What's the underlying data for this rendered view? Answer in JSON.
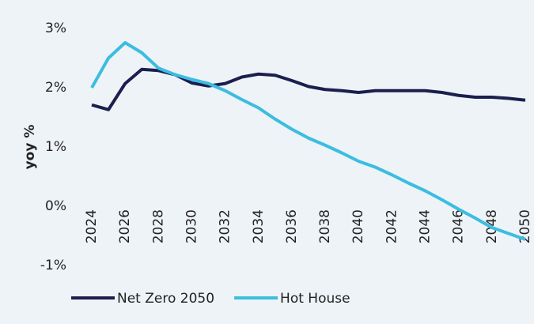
{
  "chart_data": {
    "type": "line",
    "y_label": "yoy %",
    "x": [
      2024,
      2025,
      2026,
      2027,
      2028,
      2029,
      2030,
      2031,
      2032,
      2033,
      2034,
      2035,
      2036,
      2037,
      2038,
      2039,
      2040,
      2041,
      2042,
      2043,
      2044,
      2045,
      2046,
      2047,
      2048,
      2049,
      2050
    ],
    "series": [
      {
        "name": "Net Zero 2050",
        "color": "#1b1f4e",
        "values": [
          1.71,
          1.63,
          2.07,
          2.31,
          2.29,
          2.22,
          2.08,
          2.03,
          2.07,
          2.18,
          2.23,
          2.21,
          2.12,
          2.02,
          1.97,
          1.95,
          1.92,
          1.95,
          1.95,
          1.95,
          1.95,
          1.92,
          1.87,
          1.84,
          1.84,
          1.82,
          1.79
        ]
      },
      {
        "name": "Hot House",
        "color": "#3cbde0",
        "values": [
          2.0,
          2.5,
          2.76,
          2.59,
          2.33,
          2.22,
          2.14,
          2.07,
          1.95,
          1.8,
          1.66,
          1.47,
          1.3,
          1.15,
          1.03,
          0.9,
          0.76,
          0.66,
          0.53,
          0.39,
          0.26,
          0.11,
          -0.05,
          -0.2,
          -0.36,
          -0.46,
          -0.56
        ]
      }
    ],
    "xlim": [
      2024,
      2050
    ],
    "xticks": [
      2024,
      2026,
      2028,
      2030,
      2032,
      2034,
      2036,
      2038,
      2040,
      2042,
      2044,
      2046,
      2048,
      2050
    ],
    "ylim": [
      -1,
      3
    ],
    "yticks": [
      {
        "value": -1,
        "label": "-1%"
      },
      {
        "value": 0,
        "label": "0%"
      },
      {
        "value": 1,
        "label": "1%"
      },
      {
        "value": 2,
        "label": "2%"
      },
      {
        "value": 3,
        "label": "3%"
      }
    ],
    "grid": false,
    "legend": "bottom"
  }
}
